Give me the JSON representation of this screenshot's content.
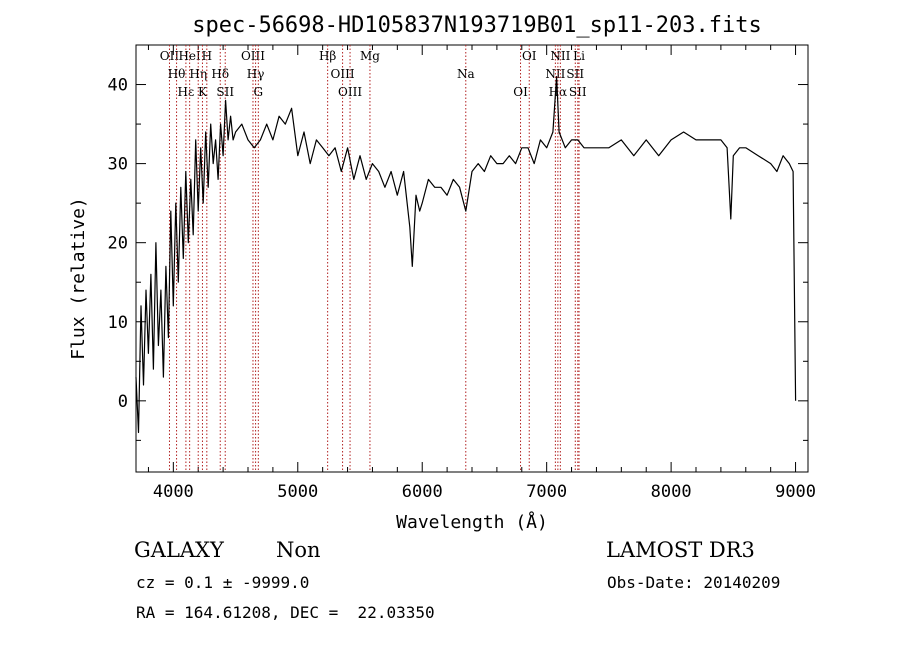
{
  "chart_data": {
    "type": "line",
    "title": "spec-56698-HD105837N193719B01_sp11-203.fits",
    "xlabel": "Wavelength (Å)",
    "ylabel": "Flux (relative)",
    "xlim": [
      3700,
      9100
    ],
    "ylim": [
      -9,
      45
    ],
    "xticks": [
      4000,
      5000,
      6000,
      7000,
      8000,
      9000
    ],
    "yticks": [
      0,
      10,
      20,
      30,
      40
    ],
    "grid": false,
    "series": [
      {
        "x": [
          3700,
          3720,
          3740,
          3760,
          3780,
          3800,
          3820,
          3840,
          3860,
          3880,
          3900,
          3920,
          3940,
          3960,
          3980,
          4000,
          4020,
          4040,
          4060,
          4080,
          4100,
          4120,
          4140,
          4160,
          4180,
          4200,
          4220,
          4240,
          4260,
          4280,
          4300,
          4320,
          4340,
          4360,
          4380,
          4400,
          4420,
          4440,
          4460,
          4480,
          4500,
          4550,
          4600,
          4650,
          4700,
          4750,
          4800,
          4850,
          4900,
          4950,
          5000,
          5050,
          5100,
          5150,
          5200,
          5250,
          5300,
          5350,
          5400,
          5450,
          5500,
          5550,
          5600,
          5650,
          5700,
          5750,
          5800,
          5850,
          5900,
          5920,
          5950,
          5980,
          6000,
          6050,
          6100,
          6150,
          6200,
          6250,
          6300,
          6350,
          6400,
          6450,
          6500,
          6550,
          6600,
          6650,
          6700,
          6750,
          6800,
          6850,
          6900,
          6950,
          7000,
          7050,
          7080,
          7100,
          7150,
          7200,
          7250,
          7300,
          7400,
          7500,
          7600,
          7700,
          7800,
          7900,
          8000,
          8100,
          8200,
          8300,
          8400,
          8450,
          8480,
          8500,
          8550,
          8600,
          8700,
          8800,
          8850,
          8900,
          8950,
          8980,
          9000
        ],
        "values": [
          3,
          -4,
          12,
          2,
          14,
          6,
          16,
          4,
          20,
          7,
          14,
          3,
          17,
          8,
          24,
          12,
          25,
          15,
          27,
          18,
          29,
          20,
          28,
          21,
          33,
          24,
          32,
          25,
          34,
          27,
          35,
          30,
          33,
          28,
          35,
          31,
          38,
          33,
          36,
          33,
          34,
          35,
          33,
          32,
          33,
          35,
          33,
          36,
          35,
          37,
          31,
          34,
          30,
          33,
          32,
          31,
          32,
          29,
          32,
          28,
          31,
          28,
          30,
          29,
          27,
          29,
          26,
          29,
          22,
          17,
          26,
          24,
          25,
          28,
          27,
          27,
          26,
          28,
          27,
          24,
          29,
          30,
          29,
          31,
          30,
          30,
          31,
          30,
          32,
          32,
          30,
          33,
          32,
          34,
          41,
          34,
          32,
          33,
          33,
          32,
          32,
          32,
          33,
          31,
          33,
          31,
          33,
          34,
          33,
          33,
          33,
          32,
          23,
          31,
          32,
          32,
          31,
          30,
          29,
          31,
          30,
          29,
          0
        ],
        "color": "#000000"
      }
    ],
    "markers": {
      "color": "#b22222",
      "lines": [
        {
          "x": 3969,
          "label": "OII"
        },
        {
          "x": 4026,
          "label": "Hθ"
        },
        {
          "x": 4101,
          "label": "Hε"
        },
        {
          "x": 4131,
          "label": "HeI"
        },
        {
          "x": 4200,
          "label": "Hη"
        },
        {
          "x": 4234,
          "label": "K"
        },
        {
          "x": 4269,
          "label": "H"
        },
        {
          "x": 4377,
          "label": "Hδ"
        },
        {
          "x": 4417,
          "label": "SII"
        },
        {
          "x": 4640,
          "label": "OIII"
        },
        {
          "x": 4661,
          "label": "Hγ"
        },
        {
          "x": 4683,
          "label": "G"
        },
        {
          "x": 5240,
          "label": "Hβ"
        },
        {
          "x": 5360,
          "label": "OIII"
        },
        {
          "x": 5420,
          "label": "OIII"
        },
        {
          "x": 5580,
          "label": "Mg"
        },
        {
          "x": 6350,
          "label": "Na"
        },
        {
          "x": 6790,
          "label": "OI"
        },
        {
          "x": 6860,
          "label": "OI"
        },
        {
          "x": 7070,
          "label": "NII"
        },
        {
          "x": 7090,
          "label": "Hα"
        },
        {
          "x": 7110,
          "label": "NII"
        },
        {
          "x": 7230,
          "label": "SII"
        },
        {
          "x": 7250,
          "label": "SII"
        },
        {
          "x": 7260,
          "label": "Li"
        }
      ]
    }
  },
  "info": {
    "class": "GALAXY",
    "subclass": "Non",
    "cz": "cz = 0.1 ± -9999.0",
    "radec": "RA = 164.61208, DEC =  22.03350",
    "survey": "LAMOST DR3",
    "obsdate": "Obs-Date: 20140209"
  }
}
